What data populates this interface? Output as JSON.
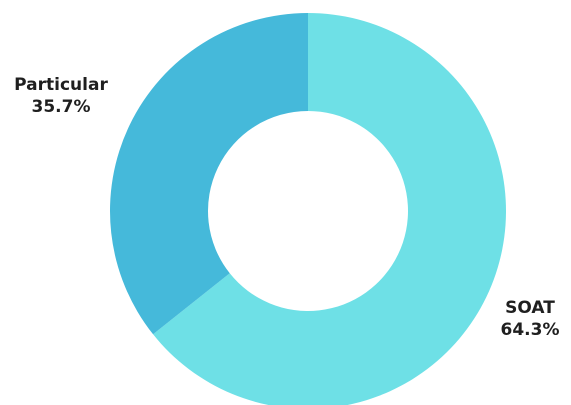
{
  "chart_data": {
    "type": "pie",
    "donut": true,
    "slices": [
      {
        "label": "SOAT",
        "value": 64.3,
        "value_label": "64.3%",
        "color": "#6ee0e6"
      },
      {
        "label": "Particular",
        "value": 35.7,
        "value_label": "35.7%",
        "color": "#45b9da"
      }
    ],
    "start_angle_deg": 0,
    "direction": "clockwise",
    "legend": "none"
  }
}
